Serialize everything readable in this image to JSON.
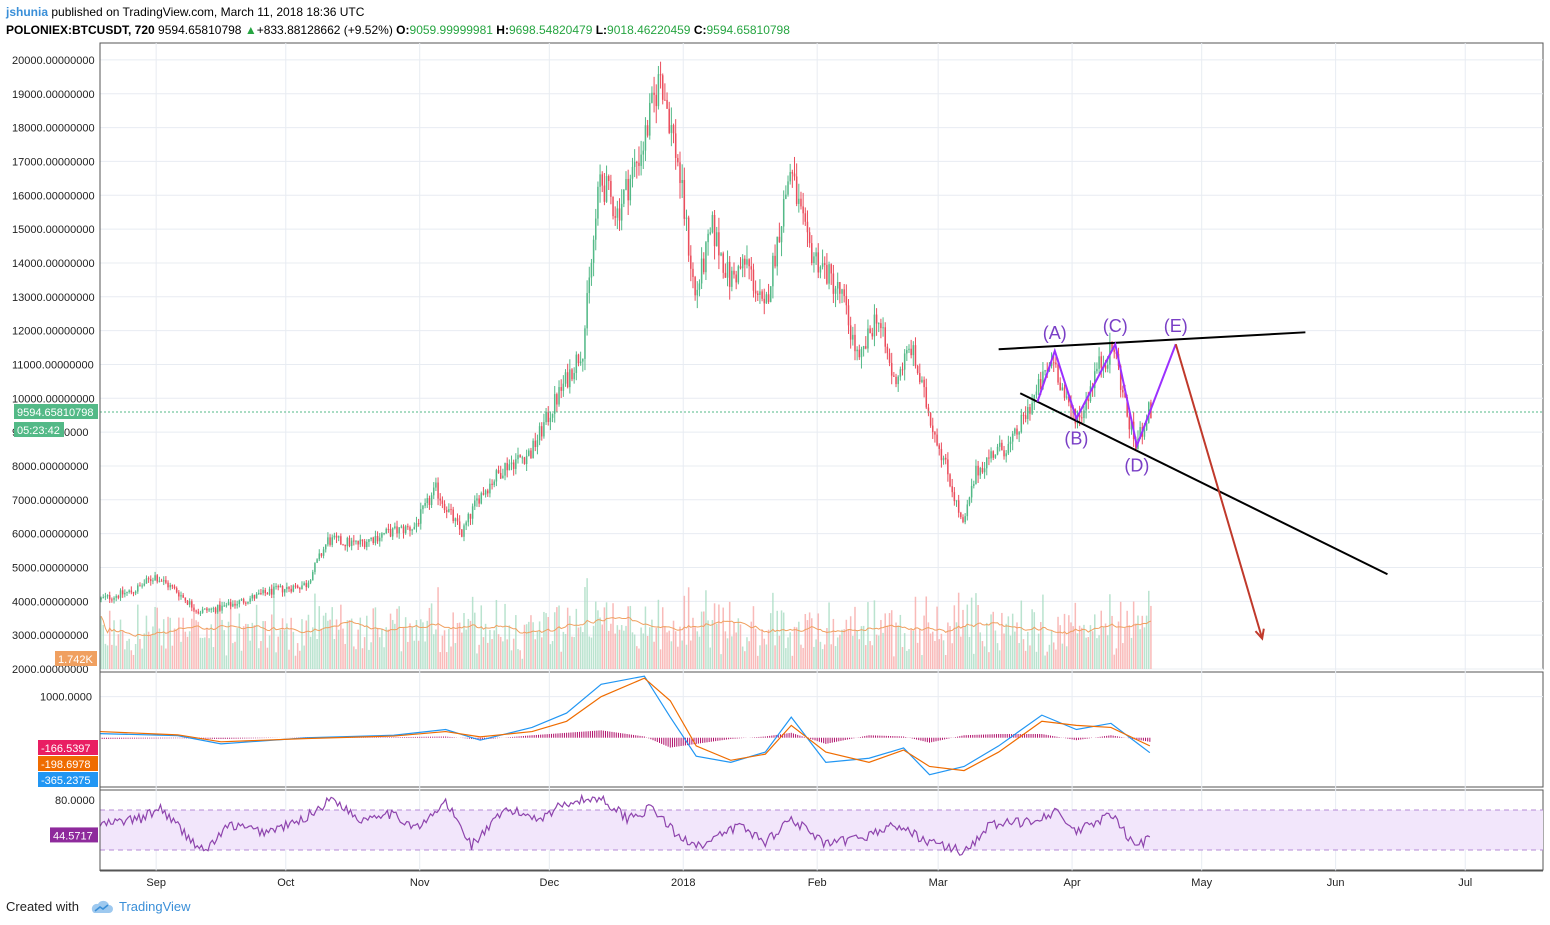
{
  "header": {
    "user": "jshunia",
    "published": "published on TradingView.com, March 11, 2018 18:36 UTC"
  },
  "symbol_line": {
    "symbol": "POLONIEX:BTCUSDT, 720",
    "last": "9594.65810798",
    "change": "+833.88128662 (+9.52%)",
    "o_label": "O:",
    "o_value": "9059.99999981",
    "h_label": "H:",
    "h_value": "9698.54820479",
    "l_label": "L:",
    "l_value": "9018.46220459",
    "c_label": "C:",
    "c_value": "9594.65810798"
  },
  "colors": {
    "up": "#53b987",
    "down": "#eb4d5c",
    "macd_line": "#2196f3",
    "signal_line": "#ef6c00",
    "rsi_line": "#8e44ad",
    "wave": "#9b30ff",
    "projection": "#c0392b",
    "trend": "#000000"
  },
  "tags": {
    "price": "9594.65810798",
    "countdown": "05:23:42",
    "volume": "1.742K",
    "macd_hist": "-166.5397",
    "macd_signal": "-198.6978",
    "macd_line": "-365.2375",
    "rsi": "44.5717"
  },
  "footer": {
    "created_with": "Created with",
    "brand": "TradingView"
  },
  "chart_data": [
    {
      "type": "candlestick",
      "panel": "price",
      "y_ticks": [
        "20000.00000000",
        "19000.00000000",
        "18000.00000000",
        "17000.00000000",
        "16000.00000000",
        "15000.00000000",
        "14000.00000000",
        "13000.00000000",
        "12000.00000000",
        "11000.00000000",
        "10000.00000000",
        "9000.00000000",
        "8000.00000000",
        "7000.00000000",
        "6000.00000000",
        "5000.00000000",
        "4000.00000000",
        "3000.00000000",
        "2000.00000000"
      ],
      "ylim": [
        2000,
        20500
      ],
      "x_ticks": [
        "Sep",
        "Oct",
        "Nov",
        "Dec",
        "2018",
        "Feb",
        "Mar",
        "Apr",
        "May",
        "Jun",
        "Jul"
      ],
      "x_tick_days": [
        5,
        35,
        66,
        96,
        127,
        158,
        186,
        217,
        247,
        278,
        308
      ],
      "xlim": [
        -8,
        326
      ],
      "price_path": [
        {
          "day": -8,
          "price": 4050
        },
        {
          "day": 0,
          "price": 4300
        },
        {
          "day": 5,
          "price": 4750
        },
        {
          "day": 10,
          "price": 4300
        },
        {
          "day": 15,
          "price": 3700
        },
        {
          "day": 20,
          "price": 3800
        },
        {
          "day": 25,
          "price": 4000
        },
        {
          "day": 32,
          "price": 4300
        },
        {
          "day": 40,
          "price": 4500
        },
        {
          "day": 45,
          "price": 5800
        },
        {
          "day": 52,
          "price": 5700
        },
        {
          "day": 58,
          "price": 6000
        },
        {
          "day": 65,
          "price": 6200
        },
        {
          "day": 70,
          "price": 7300
        },
        {
          "day": 76,
          "price": 6000
        },
        {
          "day": 80,
          "price": 7100
        },
        {
          "day": 86,
          "price": 8000
        },
        {
          "day": 92,
          "price": 8400
        },
        {
          "day": 98,
          "price": 10000
        },
        {
          "day": 104,
          "price": 11500
        },
        {
          "day": 108,
          "price": 16500
        },
        {
          "day": 112,
          "price": 15500
        },
        {
          "day": 118,
          "price": 17500
        },
        {
          "day": 122,
          "price": 19600
        },
        {
          "day": 126,
          "price": 17000
        },
        {
          "day": 130,
          "price": 13000
        },
        {
          "day": 134,
          "price": 15000
        },
        {
          "day": 138,
          "price": 13500
        },
        {
          "day": 142,
          "price": 14000
        },
        {
          "day": 146,
          "price": 12500
        },
        {
          "day": 152,
          "price": 16800
        },
        {
          "day": 156,
          "price": 14500
        },
        {
          "day": 160,
          "price": 13800
        },
        {
          "day": 164,
          "price": 13000
        },
        {
          "day": 168,
          "price": 11000
        },
        {
          "day": 172,
          "price": 12500
        },
        {
          "day": 176,
          "price": 10500
        },
        {
          "day": 180,
          "price": 11500
        },
        {
          "day": 184,
          "price": 9600
        },
        {
          "day": 188,
          "price": 8000
        },
        {
          "day": 192,
          "price": 6200
        },
        {
          "day": 195,
          "price": 7800
        },
        {
          "day": 199,
          "price": 8400
        },
        {
          "day": 203,
          "price": 8600
        },
        {
          "day": 208,
          "price": 9900
        },
        {
          "day": 213,
          "price": 11200
        },
        {
          "day": 216,
          "price": 9800
        },
        {
          "day": 219,
          "price": 9400
        },
        {
          "day": 223,
          "price": 10900
        },
        {
          "day": 227,
          "price": 11500
        },
        {
          "day": 230,
          "price": 9500
        },
        {
          "day": 232,
          "price": 8600
        },
        {
          "day": 235,
          "price": 9600
        }
      ],
      "wave_points": [
        {
          "label": "(A)",
          "day": 213,
          "price": 11400
        },
        {
          "label": "(B)",
          "day": 218,
          "price": 9400
        },
        {
          "label": "(C)",
          "day": 227,
          "price": 11600
        },
        {
          "label": "(D)",
          "day": 232,
          "price": 8600
        },
        {
          "label": "(E)",
          "day": 241,
          "price": 11600
        }
      ],
      "wave_start": {
        "day": 209,
        "price": 9900
      },
      "trendlines": [
        {
          "name": "upper",
          "from": {
            "day": 200,
            "price": 11450
          },
          "to": {
            "day": 271,
            "price": 11950
          }
        },
        {
          "name": "lower",
          "from": {
            "day": 205,
            "price": 10150
          },
          "to": {
            "day": 290,
            "price": 4800
          }
        }
      ],
      "projection": {
        "from": {
          "day": 241,
          "price": 11600
        },
        "to": {
          "day": 261,
          "price": 2900
        }
      },
      "last_price": 9594.65810798
    },
    {
      "type": "bar",
      "panel": "volume",
      "note_series": [
        "volume",
        "volume-ma"
      ],
      "tag": "1.742K"
    },
    {
      "type": "line",
      "panel": "macd",
      "y_ticks": [
        "1000.0000"
      ],
      "ylim": [
        -1200,
        1600
      ],
      "macd_path": [
        {
          "day": -8,
          "value": 100
        },
        {
          "day": 10,
          "value": 50
        },
        {
          "day": 20,
          "value": -150
        },
        {
          "day": 40,
          "value": 0
        },
        {
          "day": 60,
          "value": 60
        },
        {
          "day": 72,
          "value": 200
        },
        {
          "day": 80,
          "value": -60
        },
        {
          "day": 92,
          "value": 250
        },
        {
          "day": 100,
          "value": 600
        },
        {
          "day": 108,
          "value": 1300
        },
        {
          "day": 118,
          "value": 1500
        },
        {
          "day": 124,
          "value": 500
        },
        {
          "day": 130,
          "value": -450
        },
        {
          "day": 138,
          "value": -600
        },
        {
          "day": 146,
          "value": -350
        },
        {
          "day": 152,
          "value": 500
        },
        {
          "day": 160,
          "value": -600
        },
        {
          "day": 170,
          "value": -500
        },
        {
          "day": 178,
          "value": -250
        },
        {
          "day": 184,
          "value": -900
        },
        {
          "day": 192,
          "value": -700
        },
        {
          "day": 200,
          "value": -200
        },
        {
          "day": 210,
          "value": 550
        },
        {
          "day": 218,
          "value": 200
        },
        {
          "day": 226,
          "value": 350
        },
        {
          "day": 235,
          "value": -365
        }
      ],
      "signal_path": [
        {
          "day": -8,
          "value": 150
        },
        {
          "day": 10,
          "value": 70
        },
        {
          "day": 20,
          "value": -100
        },
        {
          "day": 40,
          "value": -20
        },
        {
          "day": 60,
          "value": 40
        },
        {
          "day": 72,
          "value": 150
        },
        {
          "day": 80,
          "value": 20
        },
        {
          "day": 92,
          "value": 150
        },
        {
          "day": 100,
          "value": 400
        },
        {
          "day": 108,
          "value": 1000
        },
        {
          "day": 118,
          "value": 1450
        },
        {
          "day": 124,
          "value": 900
        },
        {
          "day": 130,
          "value": -200
        },
        {
          "day": 138,
          "value": -550
        },
        {
          "day": 146,
          "value": -400
        },
        {
          "day": 152,
          "value": 300
        },
        {
          "day": 160,
          "value": -350
        },
        {
          "day": 170,
          "value": -600
        },
        {
          "day": 178,
          "value": -300
        },
        {
          "day": 184,
          "value": -700
        },
        {
          "day": 192,
          "value": -800
        },
        {
          "day": 200,
          "value": -350
        },
        {
          "day": 210,
          "value": 400
        },
        {
          "day": 218,
          "value": 300
        },
        {
          "day": 226,
          "value": 250
        },
        {
          "day": 235,
          "value": -199
        }
      ],
      "values": {
        "histogram": -166.5397,
        "signal": -198.6978,
        "macd": -365.2375
      }
    },
    {
      "type": "line",
      "panel": "rsi",
      "y_ticks": [
        "80.0000"
      ],
      "ylim": [
        10,
        90
      ],
      "bands": [
        70,
        30
      ],
      "rsi_path": [
        {
          "day": -8,
          "value": 55
        },
        {
          "day": 2,
          "value": 62
        },
        {
          "day": 6,
          "value": 72
        },
        {
          "day": 12,
          "value": 45
        },
        {
          "day": 16,
          "value": 28
        },
        {
          "day": 22,
          "value": 55
        },
        {
          "day": 30,
          "value": 48
        },
        {
          "day": 38,
          "value": 58
        },
        {
          "day": 46,
          "value": 82
        },
        {
          "day": 52,
          "value": 60
        },
        {
          "day": 58,
          "value": 68
        },
        {
          "day": 66,
          "value": 52
        },
        {
          "day": 72,
          "value": 78
        },
        {
          "day": 78,
          "value": 35
        },
        {
          "day": 86,
          "value": 70
        },
        {
          "day": 94,
          "value": 62
        },
        {
          "day": 100,
          "value": 78
        },
        {
          "day": 108,
          "value": 82
        },
        {
          "day": 114,
          "value": 62
        },
        {
          "day": 120,
          "value": 72
        },
        {
          "day": 126,
          "value": 42
        },
        {
          "day": 132,
          "value": 35
        },
        {
          "day": 140,
          "value": 55
        },
        {
          "day": 146,
          "value": 38
        },
        {
          "day": 152,
          "value": 62
        },
        {
          "day": 160,
          "value": 35
        },
        {
          "day": 168,
          "value": 42
        },
        {
          "day": 176,
          "value": 55
        },
        {
          "day": 184,
          "value": 38
        },
        {
          "day": 192,
          "value": 28
        },
        {
          "day": 198,
          "value": 55
        },
        {
          "day": 206,
          "value": 58
        },
        {
          "day": 213,
          "value": 68
        },
        {
          "day": 218,
          "value": 48
        },
        {
          "day": 226,
          "value": 65
        },
        {
          "day": 232,
          "value": 32
        },
        {
          "day": 235,
          "value": 44.57
        }
      ],
      "value": 44.5717
    }
  ]
}
